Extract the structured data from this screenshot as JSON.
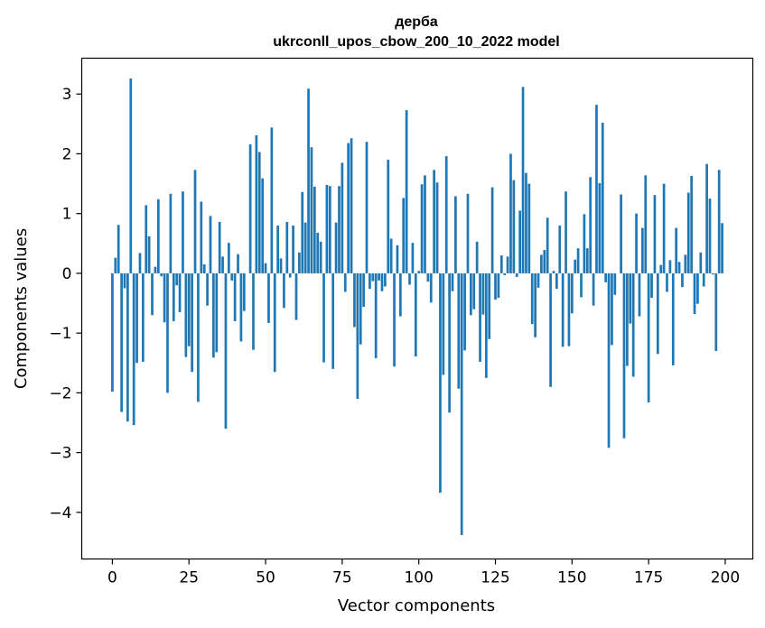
{
  "chart_data": {
    "type": "bar",
    "title": "дерба",
    "subtitle": "ukrconll_upos_cbow_200_10_2022 model",
    "xlabel": "Vector components",
    "ylabel": "Components values",
    "xlim": [
      -10,
      209
    ],
    "ylim": [
      -4.78,
      3.6
    ],
    "xticks": [
      0,
      25,
      50,
      75,
      100,
      125,
      150,
      175,
      200
    ],
    "xtick_labels": [
      "0",
      "25",
      "50",
      "75",
      "100",
      "125",
      "150",
      "175",
      "200"
    ],
    "yticks": [
      -4,
      -3,
      -2,
      -1,
      0,
      1,
      2,
      3
    ],
    "ytick_labels": [
      "−4",
      "−3",
      "−2",
      "−1",
      "0",
      "1",
      "2",
      "3"
    ],
    "bar_color": "#1f77b4",
    "grid": false,
    "x": [
      0,
      1,
      2,
      3,
      4,
      5,
      6,
      7,
      8,
      9,
      10,
      11,
      12,
      13,
      14,
      15,
      16,
      17,
      18,
      19,
      20,
      21,
      22,
      23,
      24,
      25,
      26,
      27,
      28,
      29,
      30,
      31,
      32,
      33,
      34,
      35,
      36,
      37,
      38,
      39,
      40,
      41,
      42,
      43,
      44,
      45,
      46,
      47,
      48,
      49,
      50,
      51,
      52,
      53,
      54,
      55,
      56,
      57,
      58,
      59,
      60,
      61,
      62,
      63,
      64,
      65,
      66,
      67,
      68,
      69,
      70,
      71,
      72,
      73,
      74,
      75,
      76,
      77,
      78,
      79,
      80,
      81,
      82,
      83,
      84,
      85,
      86,
      87,
      88,
      89,
      90,
      91,
      92,
      93,
      94,
      95,
      96,
      97,
      98,
      99,
      100,
      101,
      102,
      103,
      104,
      105,
      106,
      107,
      108,
      109,
      110,
      111,
      112,
      113,
      114,
      115,
      116,
      117,
      118,
      119,
      120,
      121,
      122,
      123,
      124,
      125,
      126,
      127,
      128,
      129,
      130,
      131,
      132,
      133,
      134,
      135,
      136,
      137,
      138,
      139,
      140,
      141,
      142,
      143,
      144,
      145,
      146,
      147,
      148,
      149,
      150,
      151,
      152,
      153,
      154,
      155,
      156,
      157,
      158,
      159,
      160,
      161,
      162,
      163,
      164,
      165,
      166,
      167,
      168,
      169,
      170,
      171,
      172,
      173,
      174,
      175,
      176,
      177,
      178,
      179,
      180,
      181,
      182,
      183,
      184,
      185,
      186,
      187,
      188,
      189,
      190,
      191,
      192,
      193,
      194,
      195,
      196,
      197,
      198,
      199
    ],
    "values": [
      -1.98,
      0.26,
      0.81,
      -2.32,
      -0.25,
      -2.48,
      3.26,
      -2.54,
      -1.5,
      0.34,
      -1.48,
      1.14,
      0.62,
      -0.7,
      0.11,
      1.24,
      -0.05,
      -0.82,
      -2.0,
      1.33,
      -0.8,
      -0.2,
      -0.65,
      1.37,
      -1.4,
      -1.22,
      -1.65,
      1.73,
      -2.15,
      1.2,
      0.15,
      -0.54,
      0.96,
      -1.41,
      -1.32,
      0.86,
      0.28,
      -2.6,
      0.51,
      -0.12,
      -0.8,
      0.32,
      -1.14,
      -0.63,
      0.0,
      2.16,
      -1.28,
      2.31,
      2.03,
      1.59,
      0.17,
      -0.83,
      2.44,
      -1.65,
      0.8,
      0.25,
      -0.58,
      0.86,
      -0.07,
      0.8,
      -0.78,
      0.35,
      1.36,
      0.85,
      3.09,
      2.11,
      1.45,
      0.68,
      0.53,
      -1.49,
      1.48,
      1.46,
      -1.6,
      0.85,
      1.46,
      1.85,
      -0.31,
      2.18,
      2.26,
      -0.9,
      -2.1,
      -1.19,
      -0.56,
      2.2,
      -0.26,
      -0.13,
      -1.42,
      -0.12,
      -0.3,
      -0.22,
      1.9,
      0.58,
      -1.56,
      0.47,
      -0.72,
      1.26,
      2.73,
      -0.19,
      0.51,
      -1.39,
      0.04,
      1.49,
      1.64,
      -0.14,
      -0.49,
      1.73,
      1.52,
      -3.67,
      -1.7,
      1.96,
      -2.33,
      -0.3,
      1.29,
      -1.93,
      -4.38,
      -1.29,
      1.33,
      -0.7,
      -0.6,
      0.53,
      -1.48,
      -0.69,
      -1.75,
      -1.1,
      1.44,
      -0.44,
      -0.41,
      0.3,
      -0.03,
      0.28,
      2.0,
      1.56,
      -0.06,
      1.05,
      3.12,
      1.68,
      1.5,
      -0.85,
      -1.07,
      -0.24,
      0.31,
      0.39,
      0.93,
      -1.9,
      0.04,
      -0.26,
      0.8,
      -1.23,
      1.37,
      -1.22,
      -0.67,
      0.23,
      0.42,
      -0.4,
      0.99,
      0.42,
      1.61,
      -0.54,
      2.82,
      1.51,
      2.52,
      -0.15,
      -2.92,
      -1.2,
      -0.36,
      0.0,
      1.32,
      -2.76,
      -1.55,
      -0.84,
      -1.73,
      1.0,
      -0.72,
      0.76,
      1.64,
      -2.16,
      -0.41,
      1.31,
      -1.35,
      0.14,
      1.5,
      -0.31,
      0.22,
      -1.54,
      0.76,
      0.19,
      -0.23,
      0.31,
      1.35,
      1.63,
      -0.68,
      -0.51,
      0.35,
      -0.22,
      1.83,
      1.25,
      -0.02,
      -1.3,
      1.73,
      0.84
    ]
  }
}
